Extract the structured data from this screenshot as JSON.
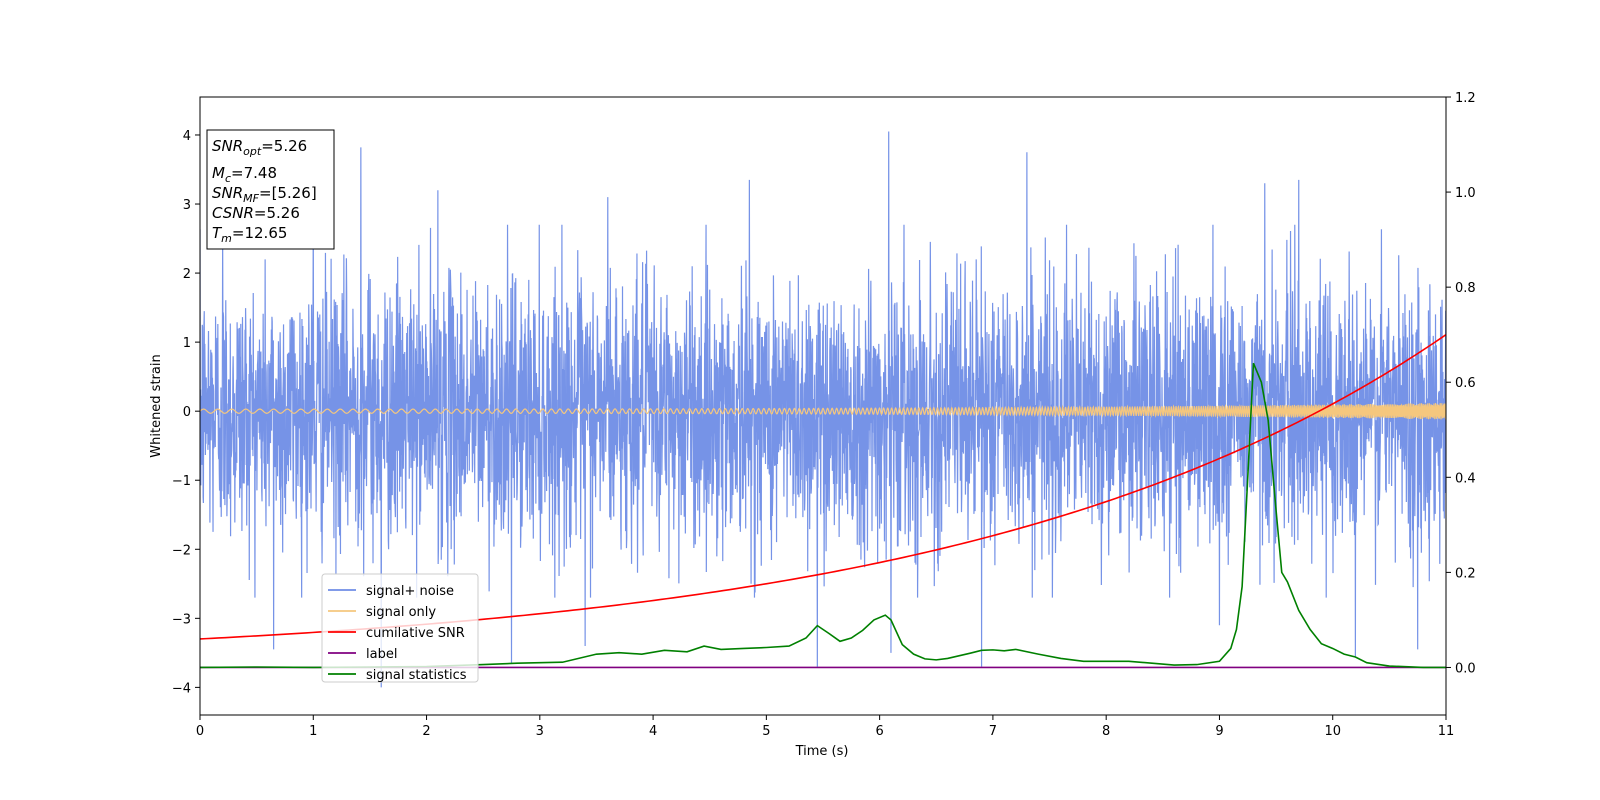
{
  "chart_data": {
    "type": "line",
    "xlabel": "Time (s)",
    "ylabel": "Whitened strain",
    "xlim": [
      0,
      11
    ],
    "ylim_left": [
      -4.4,
      4.55
    ],
    "ylim_right": [
      -0.1,
      1.2
    ],
    "x_ticks": [
      "0",
      "1",
      "2",
      "3",
      "4",
      "5",
      "6",
      "7",
      "8",
      "9",
      "10",
      "11"
    ],
    "y_ticks_left": [
      "−4",
      "−3",
      "−2",
      "−1",
      "0",
      "1",
      "2",
      "3",
      "4"
    ],
    "y_ticks_right": [
      "0.0",
      "0.2",
      "0.4",
      "0.6",
      "0.8",
      "1.0",
      "1.2"
    ],
    "legend_position": "lower-left",
    "legend": [
      {
        "label": "signal+ noise",
        "color": "#6f8de6"
      },
      {
        "label": "signal only",
        "color": "#f5c77e"
      },
      {
        "label": "cumilative SNR",
        "color": "#ff0000"
      },
      {
        "label": "label",
        "color": "#800080"
      },
      {
        "label": "signal statistics",
        "color": "#008000"
      }
    ],
    "stats_box": {
      "snr_opt": {
        "main": "SNR",
        "sub": "opt",
        "value": "=5.26"
      },
      "mc": {
        "main": "M",
        "sub": "c",
        "value": "=7.48"
      },
      "snr_mf": {
        "main": "SNR",
        "sub": "MF",
        "value": "=[5.26]"
      },
      "csnr": {
        "main": "CSNR",
        "value": "=5.26"
      },
      "tm": {
        "main": "T",
        "sub": "m",
        "value": "=12.65"
      }
    },
    "series": {
      "noise": {
        "color": "#6f8de6",
        "typical_range": [
          -2.0,
          2.0
        ],
        "spikes": [
          [
            0.2,
            2.5
          ],
          [
            0.65,
            -3.45
          ],
          [
            1.0,
            2.8
          ],
          [
            1.42,
            3.82
          ],
          [
            1.6,
            -4.0
          ],
          [
            2.1,
            3.2
          ],
          [
            2.75,
            -3.65
          ],
          [
            3.4,
            -3.4
          ],
          [
            3.6,
            3.1
          ],
          [
            4.85,
            3.35
          ],
          [
            5.45,
            -3.7
          ],
          [
            6.08,
            4.05
          ],
          [
            6.1,
            -3.5
          ],
          [
            6.9,
            -3.7
          ],
          [
            7.3,
            3.75
          ],
          [
            9.0,
            -3.1
          ],
          [
            9.4,
            3.3
          ],
          [
            9.7,
            3.35
          ],
          [
            10.2,
            -3.55
          ],
          [
            10.75,
            -3.45
          ]
        ]
      },
      "signal_only": {
        "color": "#f5c77e",
        "amplitude_start": 0.03,
        "amplitude_end": 0.12
      },
      "cumulative_snr": {
        "color": "#ff0000",
        "x": [
          0,
          1,
          2,
          3,
          4,
          5,
          6,
          7,
          8,
          9,
          9.5,
          10,
          10.5,
          11
        ],
        "y": [
          0.06,
          0.085,
          0.115,
          0.145,
          0.175,
          0.21,
          0.245,
          0.285,
          0.33,
          0.39,
          0.43,
          0.54,
          0.6,
          0.7
        ]
      },
      "label": {
        "color": "#800080",
        "x": [
          0,
          11
        ],
        "y": [
          0,
          0
        ]
      },
      "signal_statistics": {
        "color": "#008000",
        "x": [
          0,
          0.5,
          1,
          1.5,
          2,
          2.5,
          2.8,
          3.2,
          3.5,
          3.7,
          3.9,
          4.1,
          4.3,
          4.45,
          4.6,
          4.8,
          5.0,
          5.2,
          5.35,
          5.45,
          5.55,
          5.65,
          5.75,
          5.85,
          5.95,
          6.05,
          6.1,
          6.2,
          6.3,
          6.4,
          6.5,
          6.6,
          6.8,
          6.9,
          7.0,
          7.1,
          7.2,
          7.4,
          7.6,
          7.8,
          8.2,
          8.6,
          8.8,
          9.0,
          9.1,
          9.15,
          9.2,
          9.25,
          9.3,
          9.37,
          9.43,
          9.5,
          9.55,
          9.6,
          9.7,
          9.8,
          9.9,
          10.0,
          10.1,
          10.2,
          10.3,
          10.5,
          10.8,
          11
        ],
        "y": [
          0.0,
          0.001,
          0.0,
          0.001,
          0.002,
          0.006,
          0.009,
          0.011,
          0.028,
          0.031,
          0.028,
          0.036,
          0.033,
          0.045,
          0.038,
          0.04,
          0.042,
          0.045,
          0.062,
          0.088,
          0.072,
          0.055,
          0.062,
          0.078,
          0.1,
          0.11,
          0.1,
          0.048,
          0.028,
          0.018,
          0.016,
          0.019,
          0.03,
          0.036,
          0.037,
          0.035,
          0.038,
          0.028,
          0.019,
          0.013,
          0.013,
          0.005,
          0.006,
          0.013,
          0.04,
          0.08,
          0.17,
          0.4,
          0.64,
          0.6,
          0.52,
          0.33,
          0.2,
          0.18,
          0.12,
          0.08,
          0.05,
          0.04,
          0.028,
          0.022,
          0.01,
          0.003,
          0.0,
          0.0
        ]
      }
    }
  }
}
